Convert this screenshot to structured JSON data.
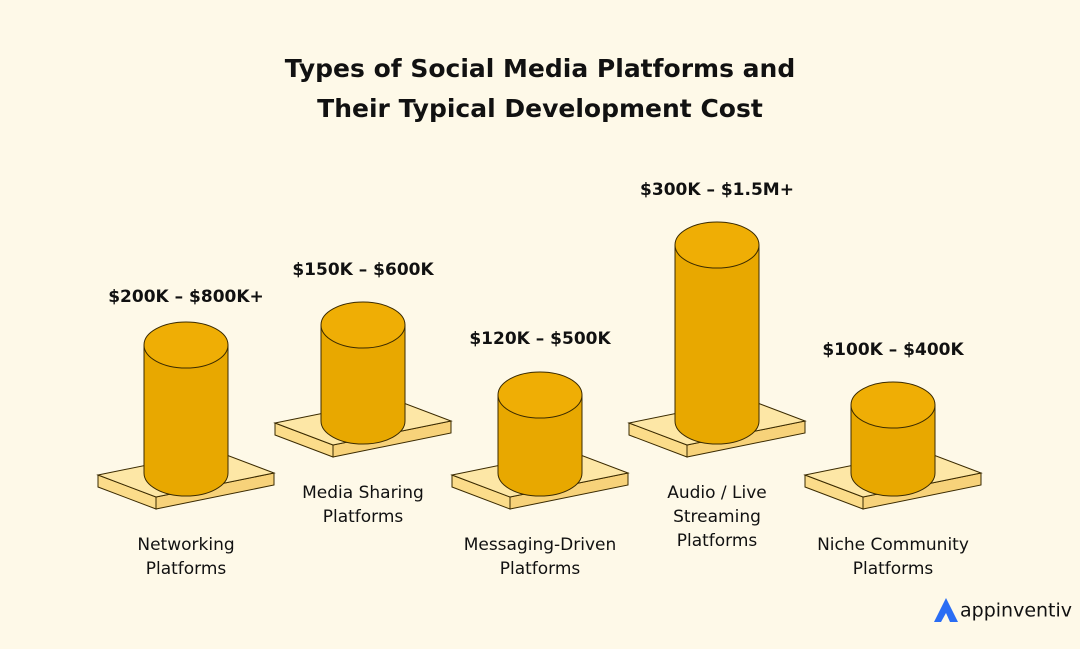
{
  "header": {
    "title": [
      "Types of Social Media Platforms and",
      "Their Typical Development Cost"
    ]
  },
  "items": [
    {
      "cost": "$200K – $800K+",
      "label": [
        "Networking",
        "Platforms"
      ]
    },
    {
      "cost": "$150K – $600K",
      "label": [
        "Media Sharing",
        "Platforms"
      ]
    },
    {
      "cost": "$120K – $500K",
      "label": [
        "Messaging-Driven",
        "Platforms"
      ]
    },
    {
      "cost": "$300K – $1.5M+",
      "label": [
        "Audio / Live",
        "Streaming",
        "Platforms"
      ]
    },
    {
      "cost": "$100K – $400K",
      "label": [
        "Niche Community",
        "Platforms"
      ]
    }
  ],
  "logo": "appinventiv"
}
